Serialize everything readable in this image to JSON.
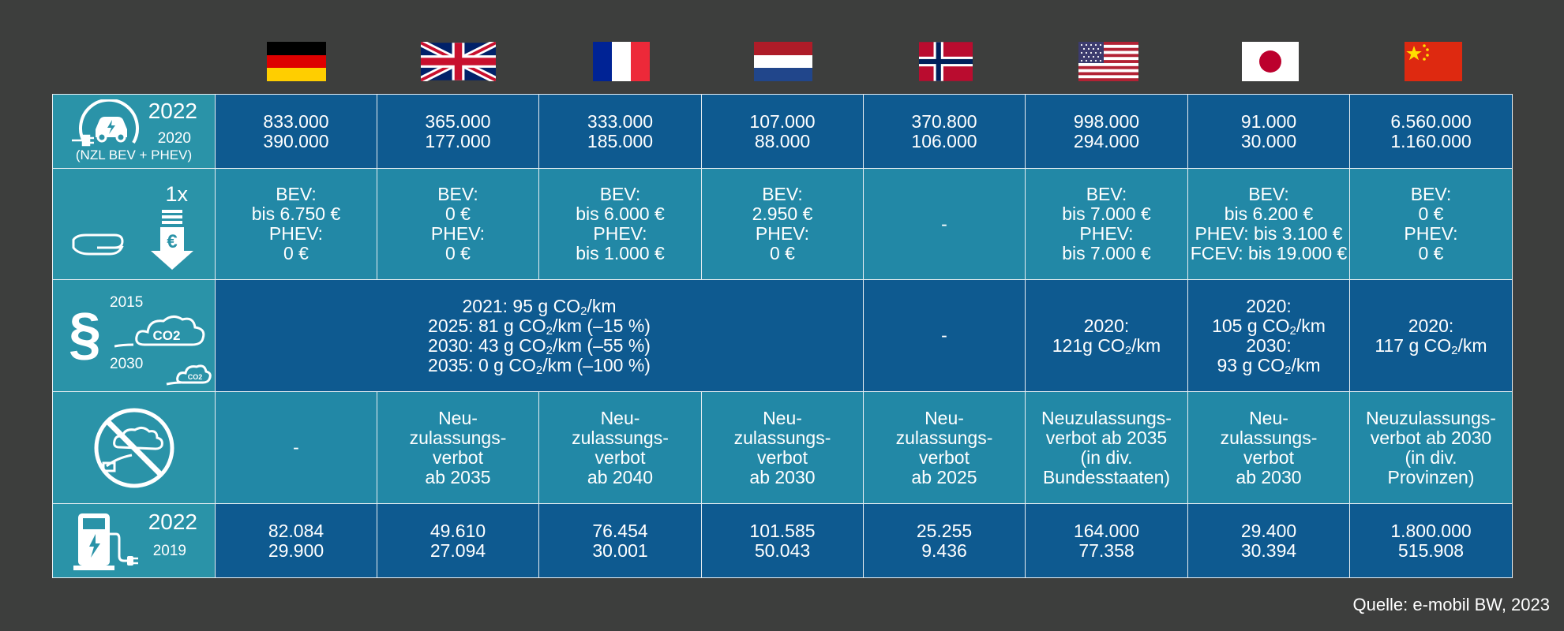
{
  "countries": [
    {
      "name": "Deutschland",
      "flag": "germany-flag"
    },
    {
      "name": "Vereinigtes Königreich",
      "flag": "uk-flag"
    },
    {
      "name": "Frankreich",
      "flag": "france-flag"
    },
    {
      "name": "Niederlande",
      "flag": "netherlands-flag"
    },
    {
      "name": "Norwegen",
      "flag": "norway-flag"
    },
    {
      "name": "USA",
      "flag": "usa-flag"
    },
    {
      "name": "Japan",
      "flag": "japan-flag"
    },
    {
      "name": "China",
      "flag": "china-flag"
    }
  ],
  "rows": {
    "registrations": {
      "icon": "ev-charging-icon",
      "year_main": "2022",
      "year_sub": "2020",
      "note": "(NZL BEV + PHEV)",
      "cells": [
        [
          "833.000",
          "390.000"
        ],
        [
          "365.000",
          "177.000"
        ],
        [
          "333.000",
          "185.000"
        ],
        [
          "107.000",
          "88.000"
        ],
        [
          "370.800",
          "106.000"
        ],
        [
          "998.000",
          "294.000"
        ],
        [
          "91.000",
          "30.000"
        ],
        [
          "6.560.000",
          "1.160.000"
        ]
      ]
    },
    "subsidy": {
      "icon": "one-time-subsidy-icon",
      "label": "1x",
      "euro": "€",
      "cells": [
        [
          "BEV:",
          "bis 6.750 €",
          "PHEV:",
          "0 €"
        ],
        [
          "BEV:",
          "0 €",
          "PHEV:",
          "0 €"
        ],
        [
          "BEV:",
          "bis 6.000 €",
          "PHEV:",
          "bis 1.000 €"
        ],
        [
          "BEV:",
          "2.950 €",
          "PHEV:",
          "0 €"
        ],
        [
          "-"
        ],
        [
          "BEV:",
          "bis 7.000 €",
          "PHEV:",
          "bis 7.000 €"
        ],
        [
          "BEV:",
          "bis 6.200 €",
          "PHEV: bis 3.100 €",
          "FCEV: bis 19.000 €"
        ],
        [
          "BEV:",
          "0 €",
          "PHEV:",
          "0 €"
        ]
      ]
    },
    "co2": {
      "icon": "co2-regulation-icon",
      "paragraph": "§",
      "year_top": "2015",
      "year_bottom": "2030",
      "cloud_big": "CO2",
      "cloud_small": "CO2",
      "eu": [
        {
          "pre": "2021: 95 g CO",
          "sub": "2",
          "post": "/km"
        },
        {
          "pre": "2025: 81 g CO",
          "sub": "2",
          "post": "/km (–15 %)"
        },
        {
          "pre": "2030: 43 g CO",
          "sub": "2",
          "post": "/km (–55 %)"
        },
        {
          "pre": "2035: 0 g CO",
          "sub": "2",
          "post": "/km (–100 %)"
        }
      ],
      "norway": "-",
      "usa": [
        {
          "pre": "2020:",
          "sub": "",
          "post": ""
        },
        {
          "pre": "121g CO",
          "sub": "2",
          "post": "/km"
        }
      ],
      "japan": [
        {
          "pre": "2020:",
          "sub": "",
          "post": ""
        },
        {
          "pre": "105 g CO",
          "sub": "2",
          "post": "/km"
        },
        {
          "pre": "2030:",
          "sub": "",
          "post": ""
        },
        {
          "pre": "93 g CO",
          "sub": "2",
          "post": "/km"
        }
      ],
      "china": [
        {
          "pre": "2020:",
          "sub": "",
          "post": ""
        },
        {
          "pre": "117 g CO",
          "sub": "2",
          "post": "/km"
        }
      ]
    },
    "ban": {
      "icon": "combustion-ban-icon",
      "cells": [
        [
          "-"
        ],
        [
          "Neu-",
          "zulassungs-",
          "verbot",
          "ab 2035"
        ],
        [
          "Neu-",
          "zulassungs-",
          "verbot",
          "ab 2040"
        ],
        [
          "Neu-",
          "zulassungs-",
          "verbot",
          "ab 2030"
        ],
        [
          "Neu-",
          "zulassungs-",
          "verbot",
          "ab 2025"
        ],
        [
          "Neuzulassungs-",
          "verbot ab 2035",
          "(in div.",
          "Bundesstaaten)"
        ],
        [
          "Neu-",
          "zulassungs-",
          "verbot",
          "ab 2030"
        ],
        [
          "Neuzulassungs-",
          "verbot ab 2030",
          "(in div.",
          "Provinzen)"
        ]
      ]
    },
    "charging": {
      "icon": "charging-station-icon",
      "year_main": "2022",
      "year_sub": "2019",
      "cells": [
        [
          "82.084",
          "29.900"
        ],
        [
          "49.610",
          "27.094"
        ],
        [
          "76.454",
          "30.001"
        ],
        [
          "101.585",
          "50.043"
        ],
        [
          "25.255",
          "9.436"
        ],
        [
          "164.000",
          "77.358"
        ],
        [
          "29.400",
          "30.394"
        ],
        [
          "1.800.000",
          "515.908"
        ]
      ]
    }
  },
  "source": "Quelle: e-mobil BW, 2023",
  "colors": {
    "background": "#3d3e3d",
    "dark_cell": "#0e5a90",
    "light_cell": "#2288a6",
    "header_cell": "#2a93a8",
    "grid": "#e8eef2"
  }
}
